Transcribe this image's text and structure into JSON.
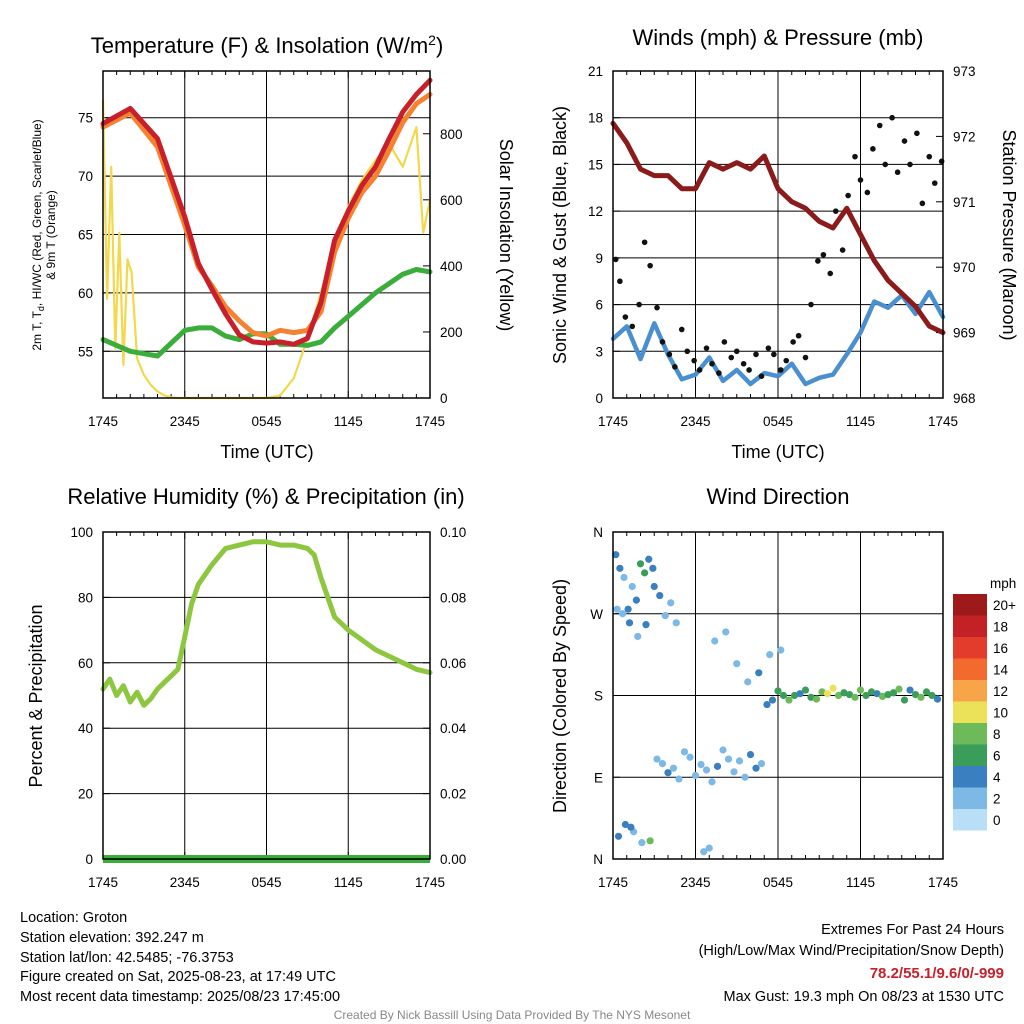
{
  "chart_data": [
    {
      "type": "line",
      "title": "Temperature (F) & Insolation (W/m",
      "title_sup": "2",
      "title_end": ")",
      "xlabel": "Time (UTC)",
      "ylabel_line1": "2m T, T",
      "ylabel_sub": "d",
      "ylabel_line1_end": ", HI/WC (Red, Green, Scarlet/Blue)",
      "ylabel_line2": "& 9m T (Orange)",
      "ylabel_right": "Solar Insolation (Yellow)",
      "x_ticks": [
        "1745",
        "2345",
        "0545",
        "1145",
        "1745"
      ],
      "y_ticks": [
        "55",
        "60",
        "65",
        "70",
        "75"
      ],
      "ylim": [
        51,
        79
      ],
      "y2_ticks": [
        "0",
        "200",
        "400",
        "600",
        "800"
      ],
      "y2lim": [
        0,
        990
      ],
      "x_hours": [
        0,
        2,
        4,
        6,
        7,
        8,
        9,
        10,
        11,
        12,
        13,
        14,
        15,
        16,
        17,
        18,
        19,
        20,
        21,
        22,
        23,
        24
      ],
      "series": [
        {
          "color": "#c8202a",
          "values": [
            74.5,
            75.8,
            73.2,
            66.5,
            62.5,
            60.3,
            58.2,
            56.4,
            55.8,
            55.7,
            55.8,
            55.6,
            56.1,
            59.2,
            64.5,
            67.0,
            69.2,
            70.8,
            73.2,
            75.5,
            77.0,
            78.2
          ]
        },
        {
          "color": "#f58231",
          "values": [
            74.2,
            75.4,
            72.5,
            65.8,
            62.2,
            60.6,
            58.8,
            57.6,
            56.6,
            56.3,
            56.8,
            56.6,
            56.8,
            58.4,
            63.5,
            66.4,
            68.6,
            70.0,
            72.2,
            74.6,
            76.2,
            77.0
          ]
        },
        {
          "color": "#3aad3a",
          "values": [
            56.0,
            55.0,
            54.6,
            56.8,
            57.0,
            57.0,
            56.3,
            56.0,
            56.5,
            56.5,
            55.6,
            55.6,
            55.5,
            55.8,
            57.0,
            58.0,
            59.0,
            60.0,
            60.8,
            61.6,
            62.0,
            61.8
          ]
        }
      ],
      "insolation": {
        "color": "#f2d84a",
        "x_hours": [
          0,
          0.3,
          0.6,
          0.9,
          1.2,
          1.5,
          1.8,
          2.1,
          2.5,
          3,
          3.5,
          4,
          4.5,
          5,
          5.5,
          6,
          12,
          13,
          14,
          15,
          16,
          17,
          18,
          19,
          20,
          21,
          22,
          23,
          23.5,
          24
        ],
        "values": [
          900,
          300,
          700,
          150,
          500,
          100,
          420,
          380,
          120,
          70,
          40,
          20,
          8,
          2,
          0,
          0,
          0,
          8,
          60,
          180,
          320,
          460,
          580,
          660,
          720,
          770,
          700,
          820,
          500,
          600
        ]
      }
    },
    {
      "type": "line",
      "title": "Winds (mph) & Pressure (mb)",
      "xlabel": "Time (UTC)",
      "ylabel": "Sonic Wind & Gust (Blue, Black)",
      "ylabel_right": "Station Pressure (Maroon)",
      "x_ticks": [
        "1745",
        "2345",
        "0545",
        "1145",
        "1745"
      ],
      "y_ticks": [
        "0",
        "3",
        "6",
        "9",
        "12",
        "15",
        "18",
        "21"
      ],
      "ylim": [
        0,
        21
      ],
      "y2_ticks": [
        "968",
        "969",
        "970",
        "971",
        "972",
        "973"
      ],
      "y2lim": [
        968,
        973
      ],
      "pressure": {
        "color": "#8b1a1a",
        "x_hours": [
          0,
          1,
          2,
          3,
          4,
          5,
          6,
          7,
          8,
          9,
          10,
          11,
          12,
          13,
          14,
          15,
          16,
          17,
          18,
          19,
          20,
          21,
          22,
          23,
          24
        ],
        "values": [
          972.2,
          971.9,
          971.5,
          971.4,
          971.4,
          971.2,
          971.2,
          971.6,
          971.5,
          971.6,
          971.5,
          971.7,
          971.2,
          971.0,
          970.9,
          970.7,
          970.6,
          970.9,
          970.5,
          970.1,
          969.8,
          969.6,
          969.4,
          969.1,
          969.0
        ]
      },
      "wind": {
        "color": "#4a90d0",
        "x_hours": [
          0,
          1,
          2,
          3,
          4,
          5,
          6,
          7,
          8,
          9,
          10,
          11,
          12,
          13,
          14,
          15,
          16,
          17,
          18,
          19,
          20,
          21,
          22,
          23,
          24
        ],
        "values": [
          3.8,
          4.6,
          2.5,
          4.8,
          2.8,
          1.2,
          1.5,
          2.6,
          1.1,
          1.8,
          0.9,
          1.6,
          1.4,
          2.2,
          0.9,
          1.3,
          1.5,
          2.8,
          4.2,
          6.2,
          5.8,
          6.6,
          5.4,
          6.8,
          5.2
        ]
      },
      "gusts": {
        "color": "#111111",
        "x_hours": [
          0.2,
          0.5,
          0.9,
          1.4,
          1.9,
          2.3,
          2.7,
          3.2,
          3.6,
          4.1,
          4.5,
          5.0,
          5.4,
          5.9,
          6.3,
          6.8,
          7.2,
          7.7,
          8.1,
          8.6,
          9.0,
          9.5,
          9.9,
          10.4,
          10.8,
          11.3,
          11.7,
          12.2,
          12.6,
          13.1,
          13.5,
          14.0,
          14.4,
          14.9,
          15.3,
          15.8,
          16.2,
          16.7,
          17.1,
          17.6,
          18.0,
          18.5,
          18.9,
          19.4,
          19.8,
          20.3,
          20.7,
          21.2,
          21.6,
          22.1,
          22.5,
          23.0,
          23.4,
          23.9
        ],
        "values": [
          8.9,
          7.5,
          5.2,
          4.6,
          6.0,
          10.0,
          8.5,
          5.8,
          3.6,
          2.8,
          2.0,
          4.4,
          3.0,
          2.4,
          1.8,
          3.2,
          2.2,
          1.6,
          3.6,
          2.6,
          3.0,
          2.2,
          1.8,
          2.8,
          1.4,
          3.2,
          2.8,
          1.8,
          2.4,
          3.6,
          4.0,
          2.6,
          6.0,
          8.8,
          9.2,
          8.0,
          12.0,
          9.5,
          13.0,
          15.5,
          14.0,
          13.2,
          16.0,
          17.5,
          15.0,
          18.0,
          14.5,
          16.5,
          15.0,
          17.0,
          12.5,
          15.5,
          13.8,
          15.2
        ]
      }
    },
    {
      "type": "line",
      "title": "Relative Humidity (%) & Precipitation (in)",
      "ylabel": "Percent & Precipitation",
      "x_ticks": [
        "1745",
        "2345",
        "0545",
        "1145",
        "1745"
      ],
      "y_ticks": [
        "0",
        "20",
        "40",
        "60",
        "80",
        "100"
      ],
      "ylim": [
        0,
        100
      ],
      "y2_ticks": [
        "0.00",
        "0.02",
        "0.04",
        "0.06",
        "0.08",
        "0.10"
      ],
      "y2lim": [
        0,
        0.1
      ],
      "series": [
        {
          "color": "#8dc63f",
          "x_hours": [
            0,
            0.5,
            1,
            1.5,
            2,
            2.5,
            3,
            3.5,
            4,
            4.5,
            5,
            5.5,
            6,
            6.5,
            7,
            8,
            9,
            10,
            11,
            12,
            13,
            14,
            15,
            15.5,
            16,
            17,
            18,
            19,
            20,
            21,
            22,
            23,
            24
          ],
          "values": [
            52,
            55,
            50,
            53,
            48,
            51,
            47,
            49,
            52,
            54,
            56,
            58,
            68,
            78,
            84,
            90,
            95,
            96,
            97,
            97,
            96,
            96,
            95,
            93,
            86,
            74,
            70,
            67,
            64,
            62,
            60,
            58,
            57
          ]
        },
        {
          "color": "#3aad3a",
          "values_flat": 0
        }
      ]
    },
    {
      "type": "scatter",
      "title": "Wind Direction",
      "ylabel": "Direction (Colored By Speed)",
      "x_ticks": [
        "1745",
        "2345",
        "0545",
        "1145",
        "1745"
      ],
      "y_ticks": [
        "N",
        "E",
        "S",
        "W",
        "N"
      ],
      "ylim": [
        0,
        360
      ],
      "legend_title": "mph",
      "legend_labels": [
        "20+",
        "18",
        "16",
        "14",
        "12",
        "10",
        "8",
        "6",
        "4",
        "2",
        "0"
      ],
      "legend_colors": [
        "#9e1a1a",
        "#c42127",
        "#e33b2c",
        "#f26a2e",
        "#f8a54a",
        "#ece25a",
        "#6dba5a",
        "#3a9e5a",
        "#3a7fbf",
        "#7cb9e6",
        "#b8dff5"
      ],
      "points_x_hours": [
        0.2,
        0.5,
        0.8,
        1.1,
        1.4,
        1.7,
        2.0,
        2.3,
        2.6,
        2.9,
        0.3,
        0.7,
        1.2,
        1.8,
        2.4,
        3.0,
        3.4,
        3.8,
        4.2,
        4.6,
        3.2,
        3.6,
        4.0,
        4.4,
        4.8,
        5.2,
        5.6,
        6.0,
        6.4,
        6.8,
        7.2,
        7.6,
        8.0,
        8.4,
        8.8,
        9.2,
        9.6,
        10.0,
        10.4,
        10.8,
        11.2,
        11.6,
        12.0,
        12.4,
        12.8,
        13.2,
        13.6,
        14.0,
        14.4,
        14.8,
        15.2,
        15.6,
        16.0,
        16.4,
        16.8,
        17.2,
        17.6,
        18.0,
        18.4,
        18.8,
        19.2,
        19.6,
        20.0,
        20.4,
        20.8,
        21.2,
        21.6,
        22.0,
        22.4,
        22.8,
        23.2,
        23.6,
        0.4,
        0.9,
        1.5,
        2.1,
        2.7,
        1.3,
        7.4,
        8.2,
        9.0,
        9.8,
        10.6,
        11.4,
        12.2,
        6.6,
        7.0
      ],
      "points_deg": [
        335,
        320,
        310,
        275,
        300,
        285,
        325,
        315,
        330,
        320,
        275,
        270,
        260,
        245,
        258,
        300,
        290,
        268,
        282,
        260,
        110,
        105,
        95,
        100,
        88,
        118,
        112,
        92,
        104,
        98,
        85,
        102,
        120,
        110,
        96,
        108,
        90,
        115,
        100,
        105,
        170,
        175,
        185,
        180,
        175,
        180,
        182,
        186,
        178,
        176,
        184,
        182,
        188,
        180,
        183,
        181,
        178,
        186,
        180,
        184,
        182,
        179,
        181,
        183,
        187,
        175,
        186,
        181,
        178,
        184,
        180,
        176,
        25,
        38,
        30,
        18,
        20,
        35,
        240,
        250,
        215,
        195,
        205,
        225,
        230,
        8,
        12
      ],
      "points_speed": [
        3,
        4,
        2,
        3,
        1,
        4,
        5,
        6,
        4,
        3,
        2,
        1,
        3,
        2,
        4,
        3,
        4,
        2,
        1,
        1,
        1,
        2,
        3,
        1,
        2,
        1,
        1,
        2,
        1,
        1,
        2,
        3,
        1,
        2,
        1,
        1,
        2,
        3,
        4,
        1,
        3,
        4,
        5,
        6,
        7,
        6,
        4,
        5,
        6,
        7,
        8,
        9,
        10,
        8,
        6,
        5,
        7,
        8,
        6,
        5,
        4,
        7,
        6,
        5,
        8,
        6,
        4,
        5,
        7,
        6,
        5,
        4,
        3,
        4,
        2,
        1,
        7,
        3,
        1,
        1,
        1,
        2,
        3,
        1,
        2,
        1,
        1
      ]
    }
  ],
  "footer": {
    "location": "Location: Groton",
    "elevation": "Station elevation: 392.247 m",
    "latlon": "Station lat/lon: 42.5485; -76.3753",
    "created": "Figure created on Sat, 2025-08-23, at 17:49 UTC",
    "recent": "Most recent data timestamp: 2025/08/23 17:45:00",
    "extremes_title": "Extremes For Past 24 Hours",
    "extremes_desc": "(High/Low/Max Wind/Precipitation/Snow Depth)",
    "extremes_values": "78.2/55.1/9.6/0/-999",
    "max_gust": "Max Gust: 19.3 mph On 08/23 at 1530 UTC",
    "credit": "Created By Nick Bassill Using Data Provided By The NYS Mesonet"
  }
}
